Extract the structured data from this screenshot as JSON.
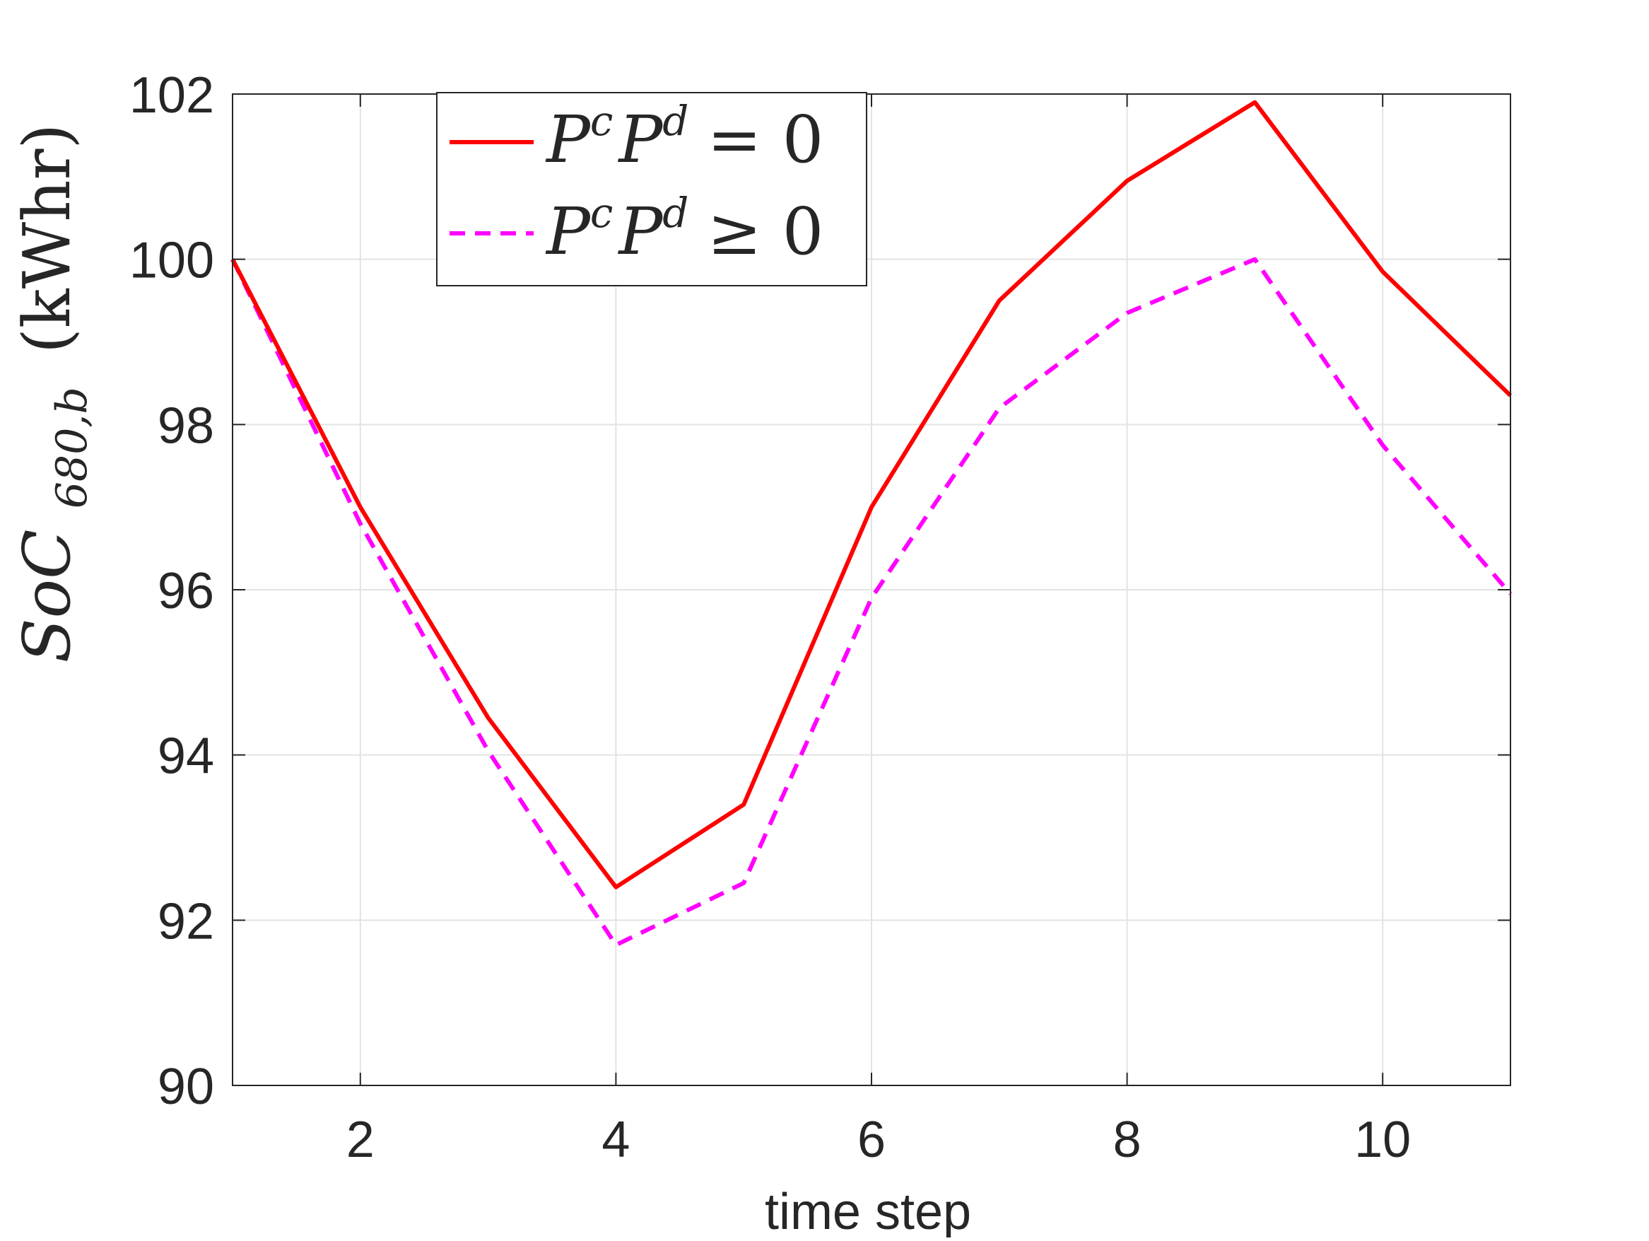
{
  "chart_data": {
    "type": "line",
    "xlabel": "time step",
    "ylabel": {
      "main": "SoC",
      "subscript": "680,b",
      "unit": "(kWhr)"
    },
    "xlim": [
      1,
      11
    ],
    "ylim": [
      90,
      102
    ],
    "x_ticks": [
      2,
      4,
      6,
      8,
      10
    ],
    "x_tick_labels": [
      "2",
      "4",
      "6",
      "8",
      "10"
    ],
    "y_ticks": [
      90,
      92,
      94,
      96,
      98,
      100,
      102
    ],
    "y_tick_labels": [
      "90",
      "92",
      "94",
      "96",
      "98",
      "100",
      "102"
    ],
    "grid": true,
    "legend_position": "top-center",
    "x": [
      1,
      2,
      3,
      4,
      5,
      6,
      7,
      8,
      9,
      10,
      11
    ],
    "series": [
      {
        "name": "P^c P^d = 0",
        "label_base1": "P",
        "label_sup1": "c",
        "label_base2": "P",
        "label_sup2": "d",
        "label_rel": "= 0",
        "color": "#ff0000",
        "style": "solid",
        "values": [
          100.0,
          97.0,
          94.45,
          92.4,
          93.4,
          97.0,
          99.5,
          100.95,
          101.9,
          99.85,
          98.35
        ]
      },
      {
        "name": "P^c P^d ≥ 0",
        "label_base1": "P",
        "label_sup1": "c",
        "label_base2": "P",
        "label_sup2": "d",
        "label_rel": "≥ 0",
        "color": "#ff00ff",
        "style": "dashed",
        "values": [
          100.0,
          96.8,
          94.05,
          91.7,
          92.45,
          95.9,
          98.2,
          99.35,
          100.0,
          97.75,
          95.95
        ]
      }
    ]
  }
}
